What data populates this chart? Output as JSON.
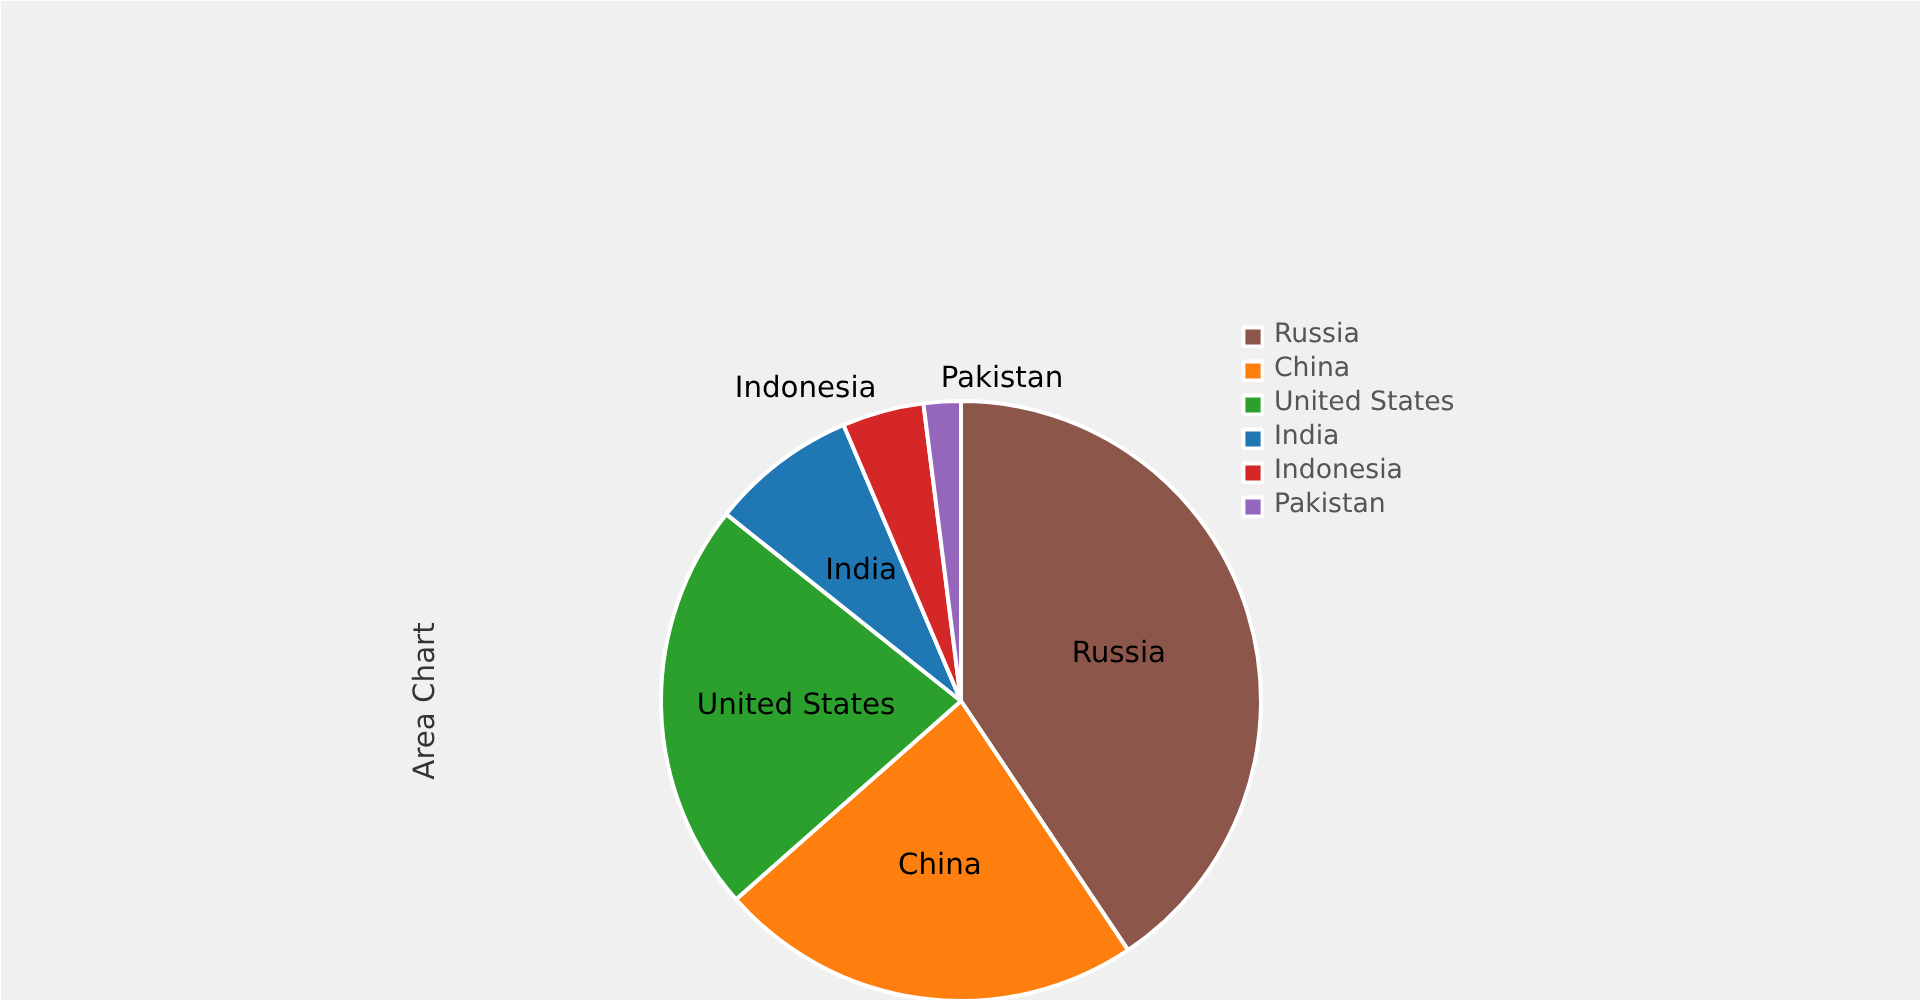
{
  "chart_data": {
    "type": "pie",
    "ylabel": "Area Chart",
    "categories": [
      "Russia",
      "China",
      "United States",
      "India",
      "Indonesia",
      "Pakistan"
    ],
    "values": [
      40.6,
      22.9,
      22.2,
      7.9,
      4.4,
      2.0
    ],
    "colors": [
      "#8c564b",
      "#ff7f0e",
      "#2ca02c",
      "#1f77b4",
      "#d62728",
      "#9467bd"
    ],
    "legend": "right"
  }
}
